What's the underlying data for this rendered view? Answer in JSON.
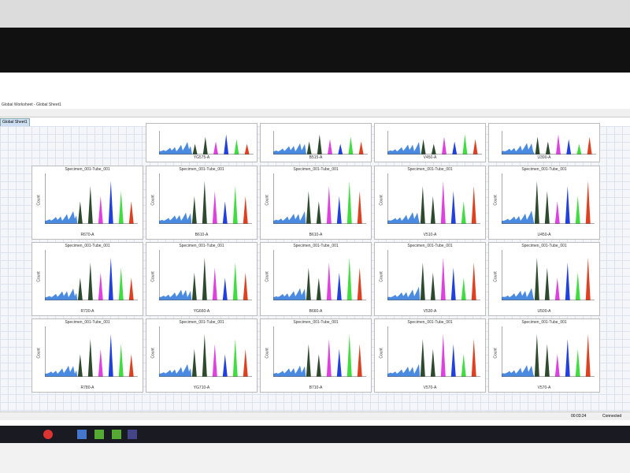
{
  "window": {
    "title": "Global Worksheet - Global Sheet1",
    "tab": "Global Sheet1"
  },
  "top_panels": [
    {
      "x_label": "YG575-A"
    },
    {
      "x_label": "B515-A"
    },
    {
      "x_label": "V450-A"
    },
    {
      "x_label": "U390-A"
    }
  ],
  "panels": [
    {
      "title": "Specimen_001-Tube_001",
      "x_label": "R670-A",
      "y_label": "Count"
    },
    {
      "title": "Specimen_001-Tube_001",
      "x_label": "B610-A",
      "y_label": "Count"
    },
    {
      "title": "Specimen_001-Tube_001",
      "x_label": "B610-A",
      "y_label": "Count"
    },
    {
      "title": "Specimen_001-Tube_001",
      "x_label": "V510-A",
      "y_label": "Count"
    },
    {
      "title": "Specimen_001-Tube_001",
      "x_label": "U450-A",
      "y_label": "Count"
    },
    {
      "title": "Specimen_001-Tube_001",
      "x_label": "R730-A",
      "y_label": "Count"
    },
    {
      "title": "Specimen_001-Tube_001",
      "x_label": "YG660-A",
      "y_label": "Count"
    },
    {
      "title": "Specimen_001-Tube_001",
      "x_label": "B660-A",
      "y_label": "Count"
    },
    {
      "title": "Specimen_001-Tube_001",
      "x_label": "V530-A",
      "y_label": "Count"
    },
    {
      "title": "Specimen_001-Tube_001",
      "x_label": "U500-A",
      "y_label": "Count"
    },
    {
      "title": "Specimen_001-Tube_001",
      "x_label": "R780-A",
      "y_label": "Count"
    },
    {
      "title": "Specimen_001-Tube_001",
      "x_label": "YG710-A",
      "y_label": "Count"
    },
    {
      "title": "Specimen_001-Tube_001",
      "x_label": "B710-A",
      "y_label": "Count"
    },
    {
      "title": "Specimen_001-Tube_001",
      "x_label": "V570-A",
      "y_label": "Count"
    },
    {
      "title": "Specimen_001-Tube_001",
      "x_label": "V570-A",
      "y_label": "Count"
    }
  ],
  "status": {
    "time": "00:03:24",
    "connection": "Connected"
  }
}
